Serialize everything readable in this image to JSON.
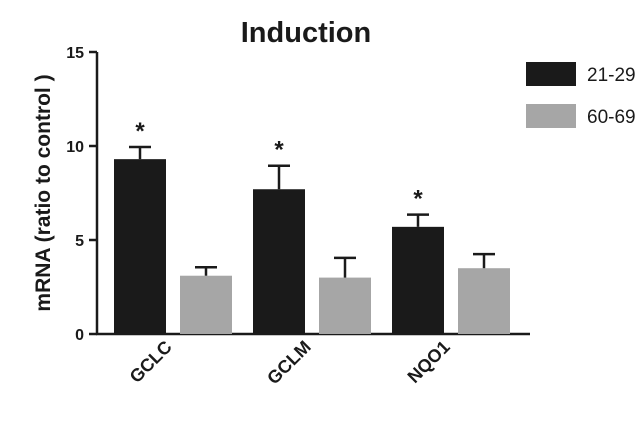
{
  "chart_data": {
    "type": "bar",
    "title": "Induction",
    "xlabel": "",
    "ylabel": "mRNA (ratio to control )",
    "ylim": [
      0,
      15
    ],
    "yticks": [
      "0",
      "5",
      "10",
      "15"
    ],
    "categories": [
      "GCLC",
      "GCLM",
      "NQO1"
    ],
    "series": [
      {
        "name": "21-29",
        "color": "#1a1a1a",
        "values": [
          9.3,
          7.7,
          5.7
        ],
        "errors": [
          0.65,
          1.25,
          0.65
        ],
        "significance": [
          "*",
          "*",
          "*"
        ]
      },
      {
        "name": "60-69",
        "color": "#a6a6a6",
        "values": [
          3.1,
          3.0,
          3.5
        ],
        "errors": [
          0.45,
          1.05,
          0.75
        ],
        "significance": [
          "",
          "",
          ""
        ]
      }
    ],
    "legend_position": "top-right",
    "grid": false
  }
}
